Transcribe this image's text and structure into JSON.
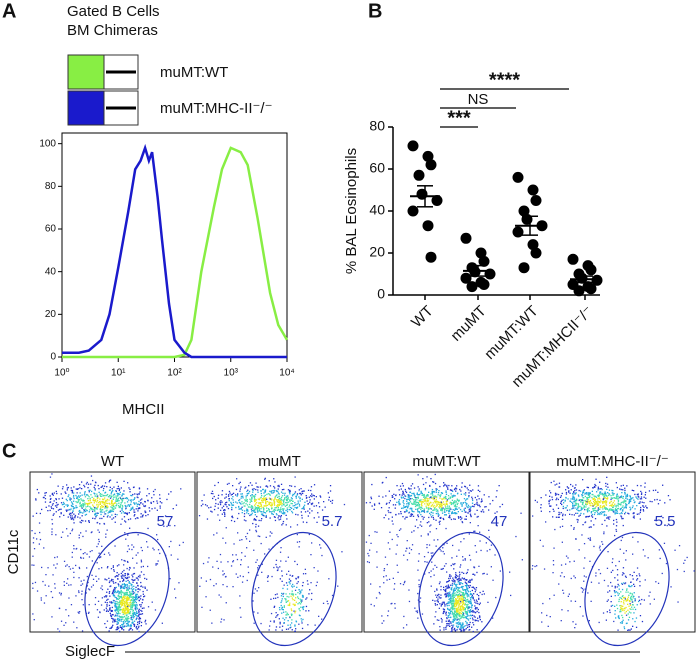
{
  "panel_labels": [
    "A",
    "B",
    "C"
  ],
  "chart_data": [
    {
      "type": "line",
      "subtitle_lines": [
        "Gated B Cells",
        "BM Chimeras"
      ],
      "xlabel": "MHCII",
      "log_x": true,
      "xlim": [
        1,
        10000
      ],
      "xticks": [
        {
          "value": 1,
          "label": "10⁰"
        },
        {
          "value": 10,
          "label": "10¹"
        },
        {
          "value": 100,
          "label": "10²"
        },
        {
          "value": 1000,
          "label": "10³"
        },
        {
          "value": 10000,
          "label": "10⁴"
        }
      ],
      "ylim": [
        0,
        105
      ],
      "yticks": [
        0,
        20,
        40,
        60,
        80,
        100
      ],
      "x": [
        1,
        1.5,
        2,
        3,
        5,
        7,
        10,
        15,
        20,
        25,
        30,
        35,
        40,
        50,
        60,
        80,
        100,
        150,
        200,
        300,
        500,
        700,
        1000,
        1500,
        2000,
        3000,
        5000,
        7000,
        10000
      ],
      "series": [
        {
          "name": "muMT:WT",
          "color": "#88ee44",
          "values": [
            0,
            0,
            0,
            0,
            0,
            0,
            0,
            0,
            0,
            0,
            0,
            0,
            0,
            0,
            0,
            0,
            0,
            1,
            8,
            40,
            70,
            88,
            98,
            96,
            90,
            65,
            30,
            15,
            8
          ]
        },
        {
          "name": "muMT:MHC-II⁻/⁻",
          "color": "#1a1acc",
          "values": [
            2,
            2,
            2,
            3,
            8,
            20,
            42,
            68,
            88,
            92,
            98,
            92,
            96,
            75,
            55,
            25,
            8,
            2,
            0,
            0,
            0,
            0,
            0,
            0,
            0,
            0,
            0,
            0,
            0
          ]
        }
      ]
    },
    {
      "type": "dot",
      "ylabel": "% BAL Eosinophils",
      "categories": [
        "WT",
        "muMT",
        "muMT:WT",
        "muMT:MHCII⁻/⁻"
      ],
      "values": [
        [
          71,
          66,
          62,
          57,
          48,
          45,
          40,
          33,
          18
        ],
        [
          27,
          20,
          16,
          13,
          11,
          10,
          8,
          6,
          5,
          4
        ],
        [
          56,
          50,
          45,
          40,
          36,
          33,
          30,
          24,
          20,
          13
        ],
        [
          17,
          14,
          12,
          10,
          8,
          7,
          5,
          4,
          3,
          2
        ]
      ],
      "means": [
        47,
        11.5,
        33,
        7.5
      ],
      "sems": [
        5,
        2.5,
        4.5,
        1.5
      ],
      "ylim": [
        0,
        80
      ],
      "yticks": [
        0,
        20,
        40,
        60,
        80
      ],
      "significance": [
        {
          "from": 0,
          "to": 1,
          "label": "***"
        },
        {
          "from": 0,
          "to": 2,
          "label": "NS"
        },
        {
          "from": 0,
          "to": 3,
          "label": "****"
        }
      ]
    }
  ],
  "flow": {
    "ylabel": "CD11c",
    "xlabel": "SiglecF",
    "plots": [
      {
        "title": "WT",
        "gate": 57
      },
      {
        "title": "muMT",
        "gate": 5.7
      },
      {
        "title": "muMT:WT",
        "gate": 47
      },
      {
        "title": "muMT:MHC-II⁻/⁻",
        "gate": 5.5
      }
    ]
  }
}
